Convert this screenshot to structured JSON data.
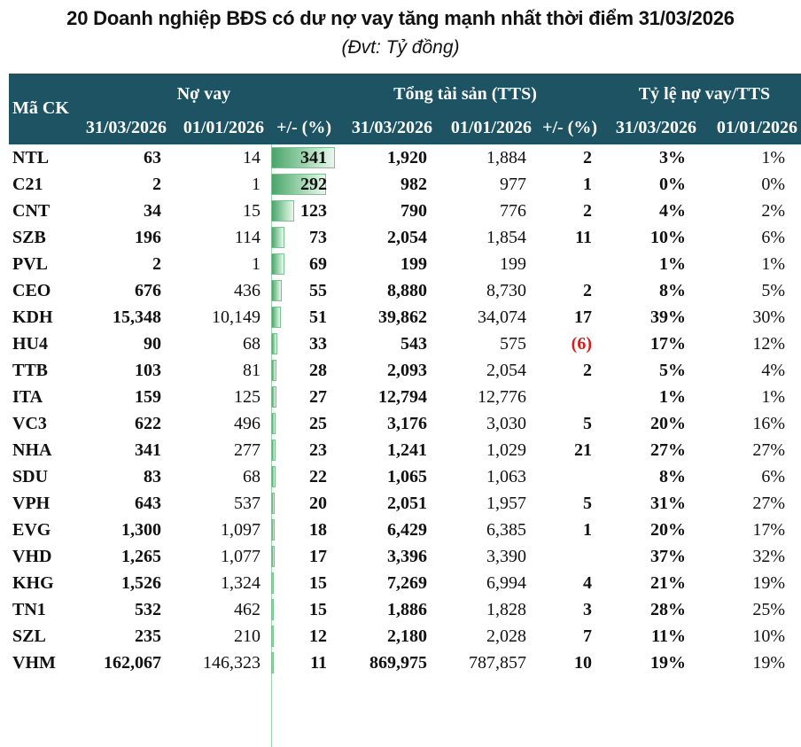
{
  "title": "20 Doanh nghiệp BĐS có dư nợ vay tăng mạnh nhất thời điểm 31/03/2026",
  "subtitle": "(Đvt: Tỷ đồng)",
  "headers": {
    "ticker": "Mã CK",
    "debt_group": "Nợ vay",
    "assets_group": "Tổng tài sản (TTS)",
    "ratio_group": "Tỷ lệ nợ vay/TTS",
    "date_new": "31/03/2026",
    "date_old": "01/01/2026",
    "change_pct": "+/- (%)"
  },
  "chart_data": {
    "type": "table",
    "title": "20 Doanh nghiệp BĐS có dư nợ vay tăng mạnh nhất thời điểm 31/03/2026",
    "unit": "(Đvt: Tỷ đồng)",
    "bar_column": "debt_change",
    "bar_max": 341,
    "rows": [
      {
        "ticker": "NTL",
        "debt_new": "63",
        "debt_old": "14",
        "debt_change": 341,
        "assets_new": "1,920",
        "assets_old": "1,884",
        "assets_change": "2",
        "ratio_new": "3%",
        "ratio_old": "1%"
      },
      {
        "ticker": "C21",
        "debt_new": "2",
        "debt_old": "1",
        "debt_change": 292,
        "assets_new": "982",
        "assets_old": "977",
        "assets_change": "1",
        "ratio_new": "0%",
        "ratio_old": "0%"
      },
      {
        "ticker": "CNT",
        "debt_new": "34",
        "debt_old": "15",
        "debt_change": 123,
        "assets_new": "790",
        "assets_old": "776",
        "assets_change": "2",
        "ratio_new": "4%",
        "ratio_old": "2%"
      },
      {
        "ticker": "SZB",
        "debt_new": "196",
        "debt_old": "114",
        "debt_change": 73,
        "assets_new": "2,054",
        "assets_old": "1,854",
        "assets_change": "11",
        "ratio_new": "10%",
        "ratio_old": "6%"
      },
      {
        "ticker": "PVL",
        "debt_new": "2",
        "debt_old": "1",
        "debt_change": 69,
        "assets_new": "199",
        "assets_old": "199",
        "assets_change": "",
        "ratio_new": "1%",
        "ratio_old": "1%"
      },
      {
        "ticker": "CEO",
        "debt_new": "676",
        "debt_old": "436",
        "debt_change": 55,
        "assets_new": "8,880",
        "assets_old": "8,730",
        "assets_change": "2",
        "ratio_new": "8%",
        "ratio_old": "5%"
      },
      {
        "ticker": "KDH",
        "debt_new": "15,348",
        "debt_old": "10,149",
        "debt_change": 51,
        "assets_new": "39,862",
        "assets_old": "34,074",
        "assets_change": "17",
        "ratio_new": "39%",
        "ratio_old": "30%"
      },
      {
        "ticker": "HU4",
        "debt_new": "90",
        "debt_old": "68",
        "debt_change": 33,
        "assets_new": "543",
        "assets_old": "575",
        "assets_change": "(6)",
        "ratio_new": "17%",
        "ratio_old": "12%"
      },
      {
        "ticker": "TTB",
        "debt_new": "103",
        "debt_old": "81",
        "debt_change": 28,
        "assets_new": "2,093",
        "assets_old": "2,054",
        "assets_change": "2",
        "ratio_new": "5%",
        "ratio_old": "4%"
      },
      {
        "ticker": "ITA",
        "debt_new": "159",
        "debt_old": "125",
        "debt_change": 27,
        "assets_new": "12,794",
        "assets_old": "12,776",
        "assets_change": "",
        "ratio_new": "1%",
        "ratio_old": "1%"
      },
      {
        "ticker": "VC3",
        "debt_new": "622",
        "debt_old": "496",
        "debt_change": 25,
        "assets_new": "3,176",
        "assets_old": "3,030",
        "assets_change": "5",
        "ratio_new": "20%",
        "ratio_old": "16%"
      },
      {
        "ticker": "NHA",
        "debt_new": "341",
        "debt_old": "277",
        "debt_change": 23,
        "assets_new": "1,241",
        "assets_old": "1,029",
        "assets_change": "21",
        "ratio_new": "27%",
        "ratio_old": "27%"
      },
      {
        "ticker": "SDU",
        "debt_new": "83",
        "debt_old": "68",
        "debt_change": 22,
        "assets_new": "1,065",
        "assets_old": "1,063",
        "assets_change": "",
        "ratio_new": "8%",
        "ratio_old": "6%"
      },
      {
        "ticker": "VPH",
        "debt_new": "643",
        "debt_old": "537",
        "debt_change": 20,
        "assets_new": "2,051",
        "assets_old": "1,957",
        "assets_change": "5",
        "ratio_new": "31%",
        "ratio_old": "27%"
      },
      {
        "ticker": "EVG",
        "debt_new": "1,300",
        "debt_old": "1,097",
        "debt_change": 18,
        "assets_new": "6,429",
        "assets_old": "6,385",
        "assets_change": "1",
        "ratio_new": "20%",
        "ratio_old": "17%"
      },
      {
        "ticker": "VHD",
        "debt_new": "1,265",
        "debt_old": "1,077",
        "debt_change": 17,
        "assets_new": "3,396",
        "assets_old": "3,390",
        "assets_change": "",
        "ratio_new": "37%",
        "ratio_old": "32%"
      },
      {
        "ticker": "KHG",
        "debt_new": "1,526",
        "debt_old": "1,324",
        "debt_change": 15,
        "assets_new": "7,269",
        "assets_old": "6,994",
        "assets_change": "4",
        "ratio_new": "21%",
        "ratio_old": "19%"
      },
      {
        "ticker": "TN1",
        "debt_new": "532",
        "debt_old": "462",
        "debt_change": 15,
        "assets_new": "1,886",
        "assets_old": "1,828",
        "assets_change": "3",
        "ratio_new": "28%",
        "ratio_old": "25%"
      },
      {
        "ticker": "SZL",
        "debt_new": "235",
        "debt_old": "210",
        "debt_change": 12,
        "assets_new": "2,180",
        "assets_old": "2,028",
        "assets_change": "7",
        "ratio_new": "11%",
        "ratio_old": "10%"
      },
      {
        "ticker": "VHM",
        "debt_new": "162,067",
        "debt_old": "146,323",
        "debt_change": 11,
        "assets_new": "869,975",
        "assets_old": "787,857",
        "assets_change": "10",
        "ratio_new": "19%",
        "ratio_old": "19%"
      }
    ]
  }
}
